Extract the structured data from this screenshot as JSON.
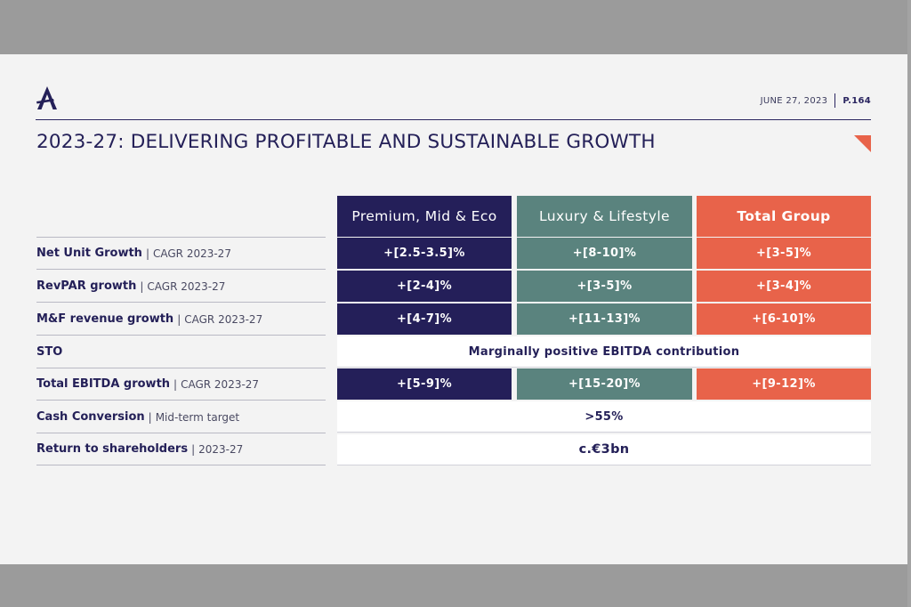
{
  "header": {
    "date": "JUNE 27, 2023",
    "page": "P.164",
    "title": "2023-27: DELIVERING PROFITABLE AND SUSTAINABLE GROWTH",
    "logo_icon": "accor-a-logo-icon",
    "corner_icon": "orange-corner-triangle-icon"
  },
  "colors": {
    "navy": "#241f59",
    "teal": "#5a837e",
    "orange": "#e8634a",
    "background": "#f3f3f3"
  },
  "table": {
    "columns": [
      "Premium, Mid & Eco",
      "Luxury & Lifestyle",
      "Total Group"
    ],
    "rows": [
      {
        "label": "Net Unit Growth",
        "sub": "CAGR 2023-27",
        "values": [
          "+[2.5-3.5]%",
          "+[8-10]%",
          "+[3-5]%"
        ]
      },
      {
        "label": "RevPAR growth",
        "sub": "CAGR 2023-27",
        "values": [
          "+[2-4]%",
          "+[3-5]%",
          "+[3-4]%"
        ]
      },
      {
        "label": "M&F revenue growth",
        "sub": "CAGR 2023-27",
        "values": [
          "+[4-7]%",
          "+[11-13]%",
          "+[6-10]%"
        ]
      },
      {
        "label": "STO",
        "sub": "",
        "merged": "Marginally positive EBITDA contribution"
      },
      {
        "label": "Total EBITDA growth",
        "sub": "CAGR 2023-27",
        "values": [
          "+[5-9]%",
          "+[15-20]%",
          "+[9-12]%"
        ]
      },
      {
        "label": "Cash Conversion",
        "sub": "Mid-term target",
        "merged": ">55%"
      },
      {
        "label": "Return to shareholders",
        "sub": "2023-27",
        "merged": "c.€3bn"
      }
    ]
  }
}
